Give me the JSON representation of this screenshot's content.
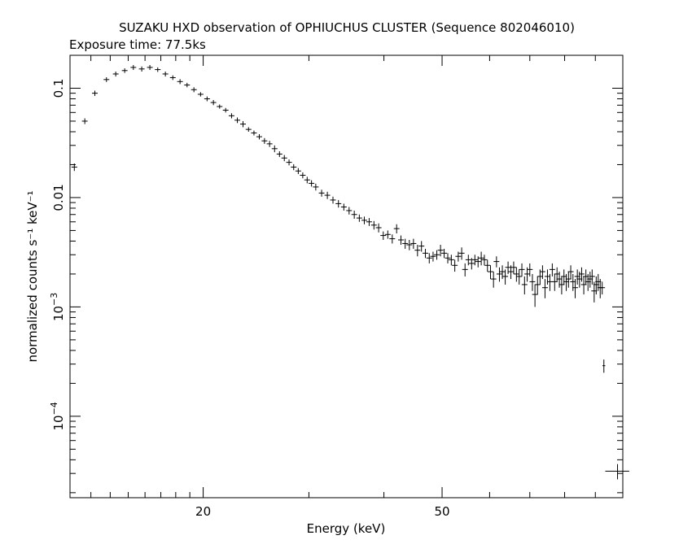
{
  "chart_data": {
    "type": "scatter",
    "title": "SUZAKU HXD observation of OPHIUCHUS CLUSTER (Sequence 802046010)",
    "subtitle": "Exposure time: 77.5ks",
    "xlabel": "Energy (keV)",
    "ylabel": "normalized counts s⁻¹ keV⁻¹",
    "x_scale": "log",
    "y_scale": "log",
    "xlim": [
      12,
      100
    ],
    "ylim": [
      1.8e-05,
      0.2
    ],
    "x_ticks_major": [
      20,
      50
    ],
    "x_tick_labels": [
      "20",
      "50"
    ],
    "x_ticks_minor": [
      13,
      14,
      15,
      16,
      17,
      18,
      19,
      30,
      40,
      60,
      70,
      80,
      90,
      100
    ],
    "y_ticks_major": [
      0.0001,
      0.001,
      0.01,
      0.1
    ],
    "y_tick_labels": [
      {
        "text": "10",
        "sup": "−4"
      },
      {
        "text": "10",
        "sup": "−3"
      },
      {
        "text": "0.01",
        "sup": ""
      },
      {
        "text": "0.1",
        "sup": ""
      }
    ],
    "grid": false,
    "series": [
      {
        "points": [
          [
            12.2,
            0.019,
            0.0015
          ],
          [
            12.7,
            0.05,
            0.003
          ],
          [
            13.2,
            0.09,
            0.005
          ],
          [
            13.8,
            0.12,
            0.006
          ],
          [
            14.3,
            0.135,
            0.007
          ],
          [
            14.8,
            0.145,
            0.007
          ],
          [
            15.3,
            0.155,
            0.008
          ],
          [
            15.8,
            0.15,
            0.008
          ],
          [
            16.3,
            0.155,
            0.008
          ],
          [
            16.8,
            0.148,
            0.007
          ],
          [
            17.3,
            0.135,
            0.007
          ],
          [
            17.8,
            0.125,
            0.006
          ],
          [
            18.3,
            0.115,
            0.006
          ],
          [
            18.8,
            0.107,
            0.005
          ],
          [
            19.3,
            0.097,
            0.005
          ],
          [
            19.8,
            0.088,
            0.004
          ],
          [
            20.3,
            0.08,
            0.004
          ],
          [
            20.8,
            0.074,
            0.004
          ],
          [
            21.3,
            0.068,
            0.003
          ],
          [
            21.8,
            0.063,
            0.003
          ],
          [
            22.3,
            0.056,
            0.003
          ],
          [
            22.8,
            0.051,
            0.003
          ],
          [
            23.3,
            0.047,
            0.003
          ],
          [
            23.8,
            0.042,
            0.002
          ],
          [
            24.3,
            0.039,
            0.002
          ],
          [
            24.8,
            0.036,
            0.002
          ],
          [
            25.3,
            0.033,
            0.002
          ],
          [
            25.8,
            0.031,
            0.002
          ],
          [
            26.3,
            0.028,
            0.002
          ],
          [
            26.8,
            0.025,
            0.0015
          ],
          [
            27.3,
            0.023,
            0.0015
          ],
          [
            27.8,
            0.021,
            0.0013
          ],
          [
            28.3,
            0.019,
            0.0012
          ],
          [
            28.8,
            0.0175,
            0.0011
          ],
          [
            29.3,
            0.016,
            0.001
          ],
          [
            29.8,
            0.0145,
            0.001
          ],
          [
            30.3,
            0.0135,
            0.0009
          ],
          [
            30.8,
            0.0125,
            0.0009
          ],
          [
            31.5,
            0.011,
            0.0008
          ],
          [
            32.2,
            0.0105,
            0.0008
          ],
          [
            32.9,
            0.0095,
            0.0007
          ],
          [
            33.6,
            0.0088,
            0.0007
          ],
          [
            34.3,
            0.0082,
            0.0006
          ],
          [
            35.0,
            0.0076,
            0.0006
          ],
          [
            35.7,
            0.007,
            0.0006
          ],
          [
            36.4,
            0.0065,
            0.0005
          ],
          [
            37.1,
            0.0062,
            0.0005
          ],
          [
            37.8,
            0.006,
            0.0005
          ],
          [
            38.5,
            0.0056,
            0.0005
          ],
          [
            39.2,
            0.0053,
            0.0005
          ],
          [
            39.9,
            0.0045,
            0.0004
          ],
          [
            40.6,
            0.0046,
            0.0004
          ],
          [
            41.3,
            0.0042,
            0.0004
          ],
          [
            42.0,
            0.0052,
            0.0005
          ],
          [
            42.7,
            0.0041,
            0.0004
          ],
          [
            43.4,
            0.0038,
            0.0004
          ],
          [
            44.1,
            0.0037,
            0.0004
          ],
          [
            44.8,
            0.0038,
            0.0004
          ],
          [
            45.5,
            0.0033,
            0.0004
          ],
          [
            46.2,
            0.0036,
            0.0004
          ],
          [
            46.9,
            0.0031,
            0.0003
          ],
          [
            47.6,
            0.0028,
            0.0003
          ],
          [
            48.3,
            0.0029,
            0.0003
          ],
          [
            49.0,
            0.003,
            0.0003
          ],
          [
            49.7,
            0.0033,
            0.0004
          ],
          [
            50.4,
            0.0031,
            0.0003
          ],
          [
            51.1,
            0.0028,
            0.0003
          ],
          [
            51.8,
            0.0027,
            0.0003
          ],
          [
            52.5,
            0.0024,
            0.0003
          ],
          [
            53.2,
            0.0029,
            0.0003
          ],
          [
            53.9,
            0.0031,
            0.0004
          ],
          [
            54.6,
            0.0022,
            0.0003
          ],
          [
            55.3,
            0.0027,
            0.0003
          ],
          [
            56.0,
            0.0025,
            0.0003
          ],
          [
            56.7,
            0.0027,
            0.0003
          ],
          [
            57.4,
            0.0026,
            0.0003
          ],
          [
            58.1,
            0.0028,
            0.0004
          ],
          [
            58.8,
            0.0027,
            0.0003
          ],
          [
            59.5,
            0.0024,
            0.0003
          ],
          [
            60.2,
            0.0021,
            0.0003
          ],
          [
            60.9,
            0.0018,
            0.0003
          ],
          [
            61.6,
            0.0026,
            0.0003
          ],
          [
            62.3,
            0.002,
            0.0003
          ],
          [
            63.0,
            0.0021,
            0.0003
          ],
          [
            63.7,
            0.0019,
            0.0003
          ],
          [
            64.4,
            0.0023,
            0.0003
          ],
          [
            65.1,
            0.0021,
            0.0003
          ],
          [
            65.8,
            0.0023,
            0.0003
          ],
          [
            66.5,
            0.002,
            0.0003
          ],
          [
            67.2,
            0.0019,
            0.0003
          ],
          [
            67.9,
            0.0022,
            0.0003
          ],
          [
            68.6,
            0.0016,
            0.0003
          ],
          [
            69.3,
            0.002,
            0.0003
          ],
          [
            70.0,
            0.0022,
            0.0003
          ],
          [
            70.7,
            0.0017,
            0.0003
          ],
          [
            71.4,
            0.0013,
            0.0003
          ],
          [
            72.1,
            0.0016,
            0.0003
          ],
          [
            72.8,
            0.0019,
            0.0003
          ],
          [
            73.5,
            0.0021,
            0.0003
          ],
          [
            74.2,
            0.0015,
            0.0003
          ],
          [
            74.9,
            0.0019,
            0.0003
          ],
          [
            75.6,
            0.0017,
            0.0003
          ],
          [
            76.3,
            0.0022,
            0.0003
          ],
          [
            77.0,
            0.0017,
            0.0003
          ],
          [
            77.7,
            0.002,
            0.0003
          ],
          [
            78.4,
            0.0018,
            0.0003
          ],
          [
            79.1,
            0.0016,
            0.0003
          ],
          [
            79.8,
            0.0019,
            0.0003
          ],
          [
            80.5,
            0.0017,
            0.0003
          ],
          [
            81.2,
            0.0018,
            0.0003
          ],
          [
            81.9,
            0.0021,
            0.0003
          ],
          [
            82.6,
            0.0017,
            0.0003
          ],
          [
            83.3,
            0.0015,
            0.0003
          ],
          [
            84.0,
            0.0019,
            0.0003
          ],
          [
            84.7,
            0.0018,
            0.0003
          ],
          [
            85.4,
            0.002,
            0.0003
          ],
          [
            86.1,
            0.0016,
            0.0003
          ],
          [
            86.8,
            0.0019,
            0.0003
          ],
          [
            87.5,
            0.0017,
            0.0003
          ],
          [
            88.2,
            0.0018,
            0.0003
          ],
          [
            88.9,
            0.0019,
            0.0003
          ],
          [
            89.6,
            0.0014,
            0.0003
          ],
          [
            90.3,
            0.0016,
            0.0003
          ],
          [
            91.0,
            0.0017,
            0.0003
          ],
          [
            91.7,
            0.0015,
            0.0003
          ],
          [
            92.4,
            0.0015,
            0.0002
          ]
        ],
        "outliers": [
          [
            93.0,
            0.00029,
            4e-05,
            0.5
          ],
          [
            98.0,
            3.15e-05,
            5e-06,
            4.5
          ]
        ]
      }
    ]
  }
}
